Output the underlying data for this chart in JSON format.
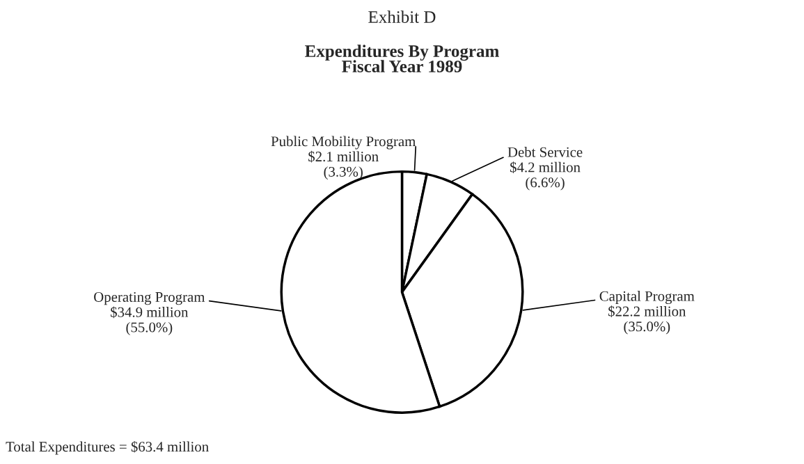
{
  "chart_data": {
    "type": "pie",
    "title": "Exhibit D",
    "subtitle": "Expenditures By Program\nFiscal Year 1989",
    "categories": [
      "Public Mobility Program",
      "Debt Service",
      "Capital Program",
      "Operating Program"
    ],
    "values": [
      3.3,
      6.6,
      35.0,
      55.0
    ],
    "value_labels": [
      "$2.1 million\n(3.3%)",
      "$4.2 million\n(6.6%)",
      "$22.2 million\n(35.0%)",
      "$34.9 million\n(55.0%)"
    ],
    "colors": [
      "#ffffff",
      "#ffffff",
      "#ffffff",
      "#ffffff"
    ],
    "annotations": [
      "Total Expenditures = $63.4 million"
    ],
    "legend": false
  }
}
